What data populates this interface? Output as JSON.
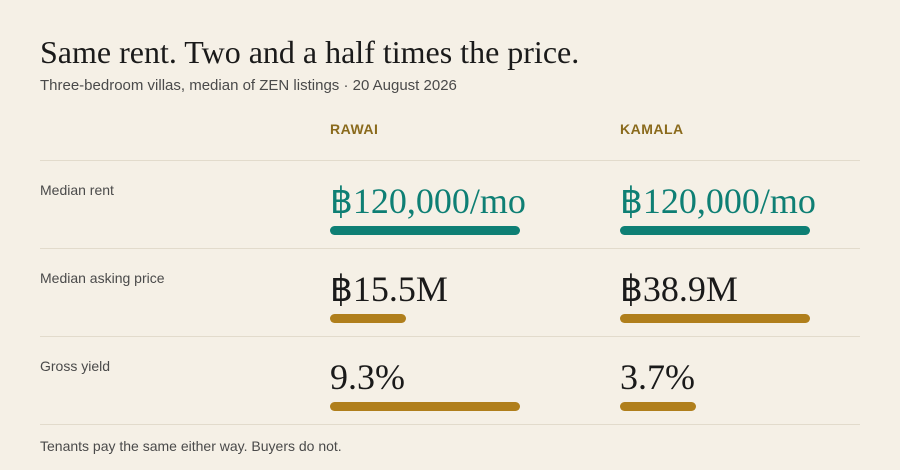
{
  "title": "Same rent. Two and a half times the price.",
  "subtitle": "Three-bedroom villas, median of ZEN listings · 20 August 2026",
  "columns": [
    "RAWAI",
    "KAMALA"
  ],
  "rows": [
    {
      "label": "Median rent",
      "values": [
        "฿120,000/mo",
        "฿120,000/mo"
      ],
      "bar_fractions": [
        1.0,
        1.0
      ],
      "color": "#0e7f74"
    },
    {
      "label": "Median asking price",
      "values": [
        "฿15.5M",
        "฿38.9M"
      ],
      "bar_fractions": [
        0.398,
        1.0
      ],
      "color": "#b07f1c"
    },
    {
      "label": "Gross yield",
      "values": [
        "9.3%",
        "3.7%"
      ],
      "bar_fractions": [
        1.0,
        0.398
      ],
      "color": "#b07f1c"
    }
  ],
  "footer": "Tenants pay the same either way. Buyers do not."
}
